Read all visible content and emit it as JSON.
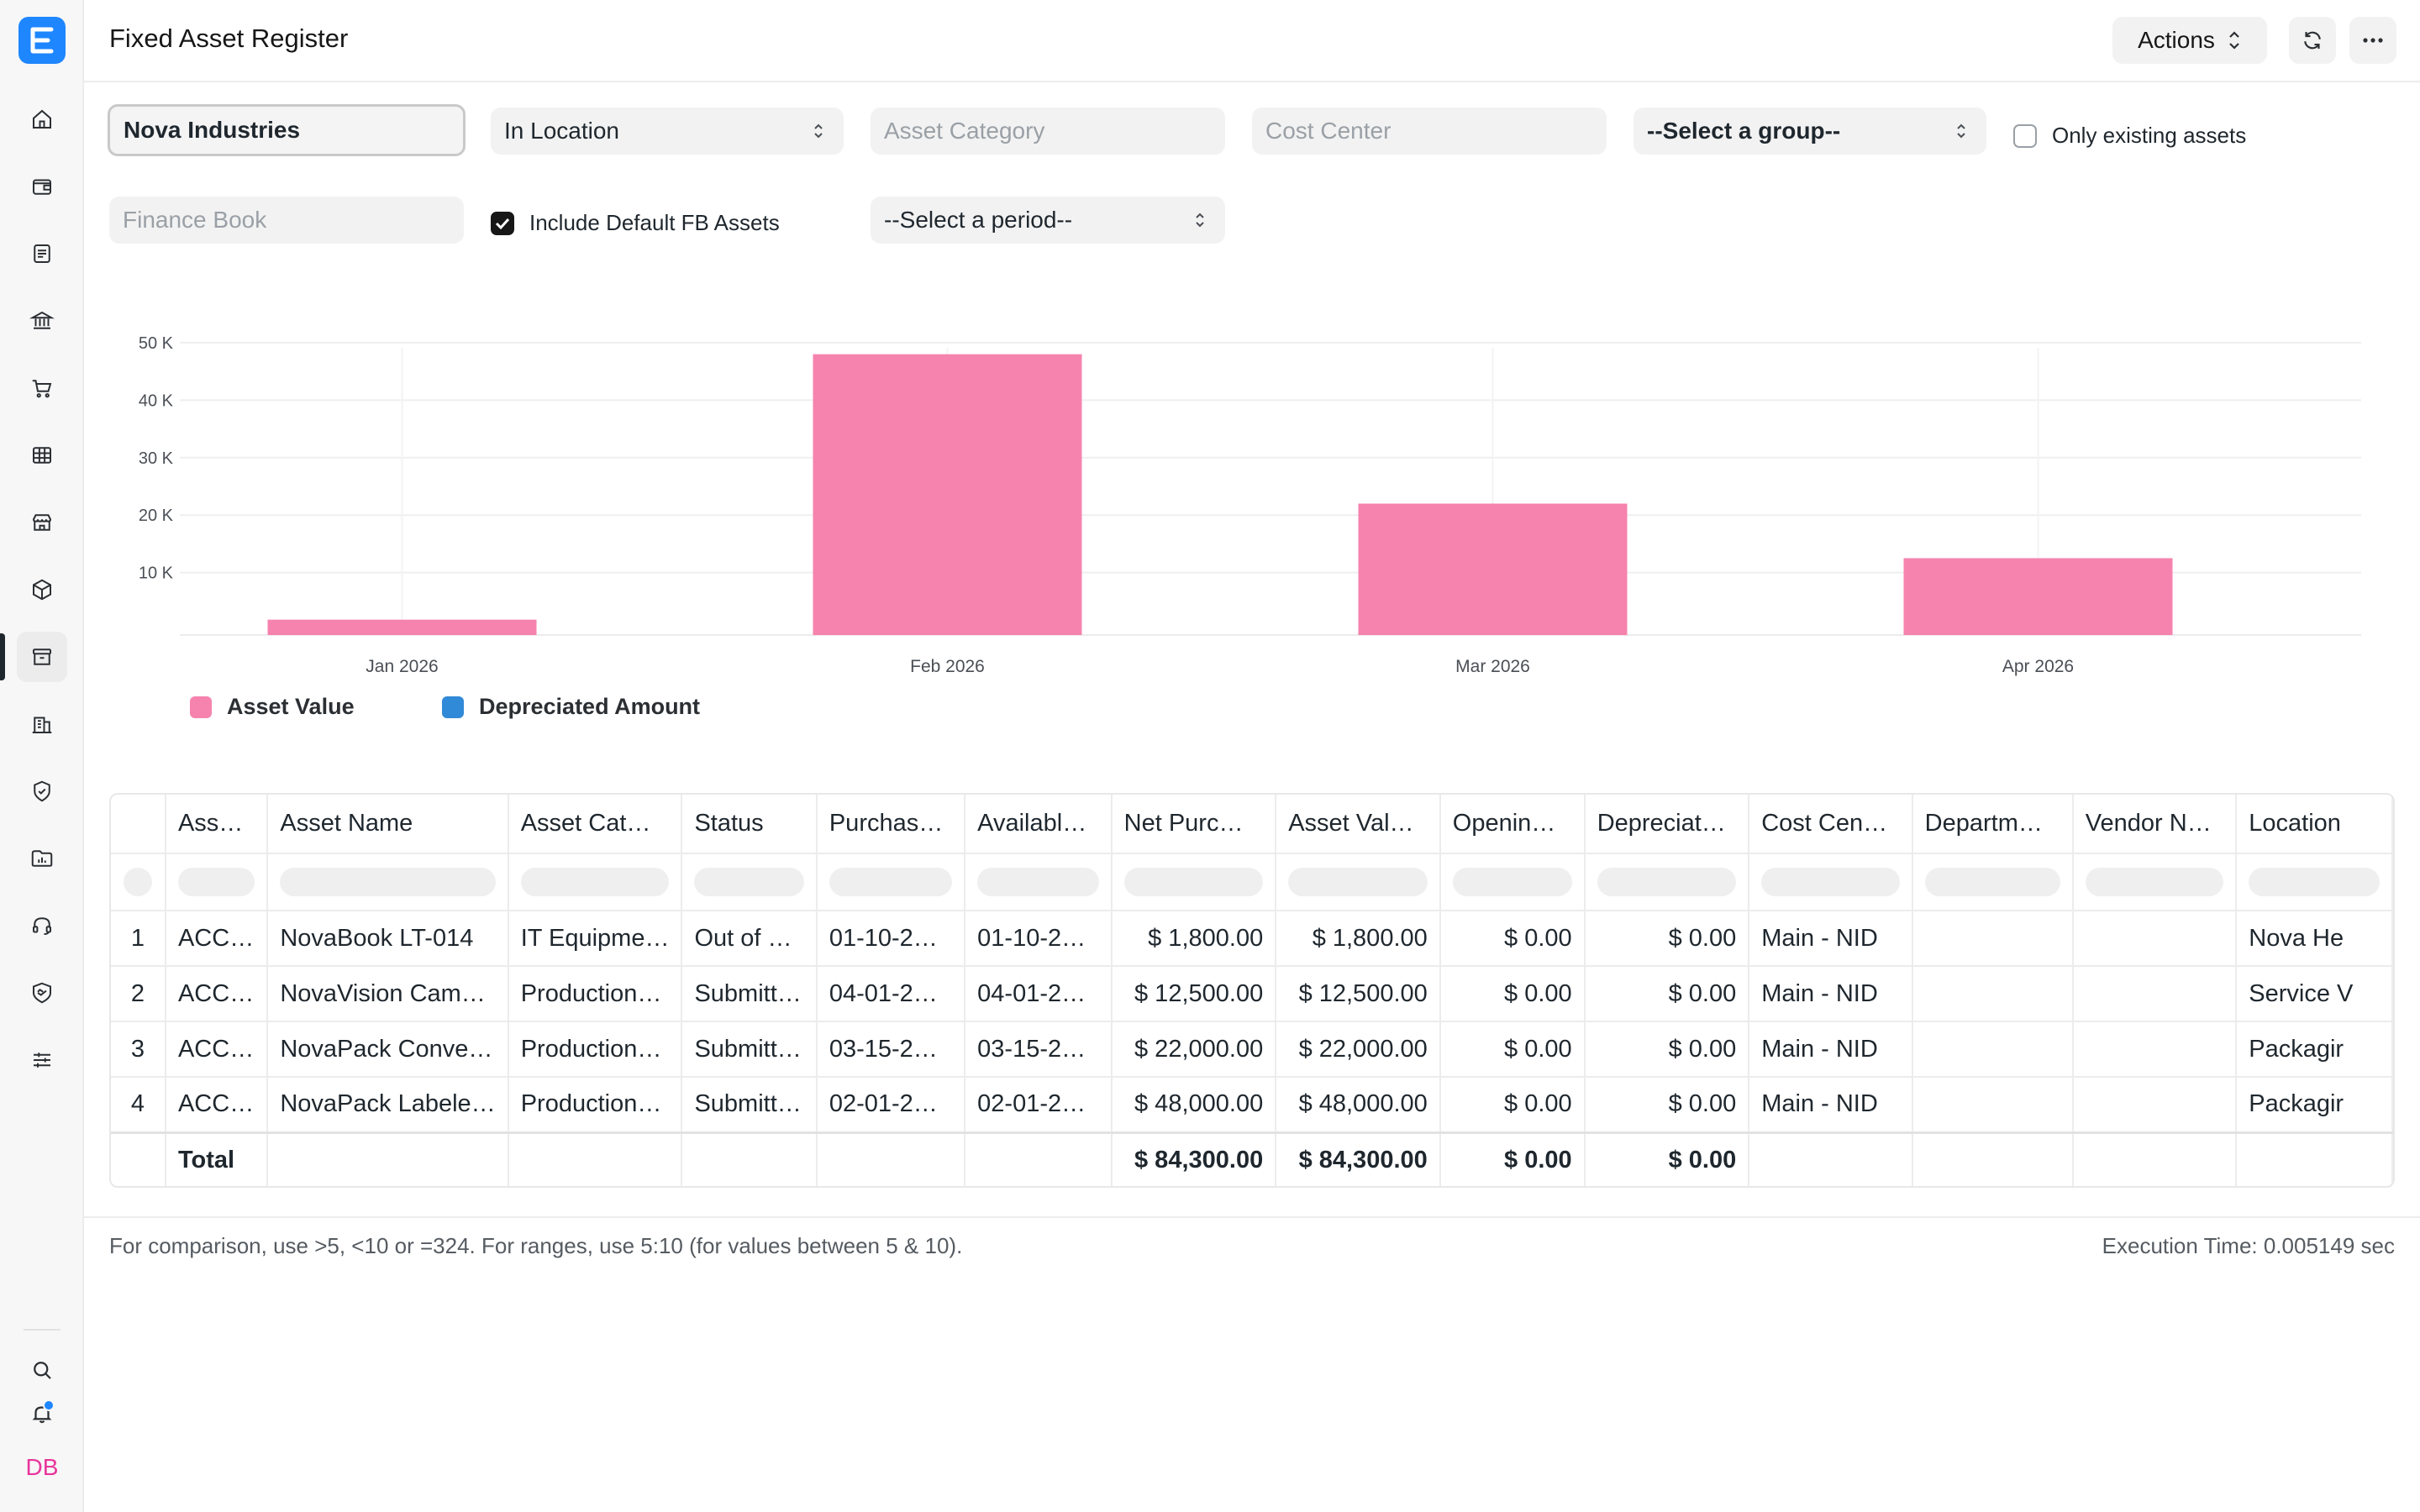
{
  "app": {
    "logo_letter": "E",
    "user_initials": "DB"
  },
  "header": {
    "title": "Fixed Asset Register",
    "actions_label": "Actions"
  },
  "filters": {
    "company": "Nova Industries",
    "status": "In Location",
    "asset_category_placeholder": "Asset Category",
    "cost_center_placeholder": "Cost Center",
    "group_by": "--Select a group--",
    "only_existing_label": "Only existing assets",
    "only_existing_checked": false,
    "finance_book_placeholder": "Finance Book",
    "include_default_fb_label": "Include Default FB Assets",
    "include_default_fb_checked": true,
    "period": "--Select a period--"
  },
  "sidebar": {
    "items": [
      {
        "icon": "home-icon"
      },
      {
        "icon": "wallet-icon"
      },
      {
        "icon": "document-icon"
      },
      {
        "icon": "bank-icon"
      },
      {
        "icon": "cart-icon"
      },
      {
        "icon": "table-icon"
      },
      {
        "icon": "store-icon"
      },
      {
        "icon": "box-icon"
      },
      {
        "icon": "archive-icon",
        "active": true
      },
      {
        "icon": "building-icon"
      },
      {
        "icon": "shield-icon"
      },
      {
        "icon": "folder-chart-icon"
      },
      {
        "icon": "headset-icon"
      },
      {
        "icon": "shield-handshake-icon"
      },
      {
        "icon": "sliders-icon"
      }
    ],
    "bottom": [
      {
        "icon": "search-icon"
      },
      {
        "icon": "bell-icon",
        "has_notification": true
      }
    ]
  },
  "chart_data": {
    "type": "bar",
    "categories": [
      "Jan 2026",
      "Feb 2026",
      "Mar 2026",
      "Apr 2026"
    ],
    "series": [
      {
        "name": "Asset Value",
        "color": "#f683ae",
        "values": [
          1800,
          48000,
          22000,
          12500
        ]
      },
      {
        "name": "Depreciated Amount",
        "color": "#318ad8",
        "values": [
          0,
          0,
          0,
          0
        ]
      }
    ],
    "y_ticks": [
      "10 K",
      "20 K",
      "30 K",
      "40 K",
      "50 K"
    ],
    "y_tick_values": [
      10000,
      20000,
      30000,
      40000,
      50000
    ],
    "ylim": [
      0,
      50000
    ],
    "legend_position": "bottom-left",
    "grid": true
  },
  "table": {
    "columns": [
      "Ass…",
      "Asset Name",
      "Asset Cat…",
      "Status",
      "Purchas…",
      "Availabl…",
      "Net Purc…",
      "Asset Val…",
      "Openin…",
      "Depreciat…",
      "Cost Cen…",
      "Departm…",
      "Vendor N…",
      "Location"
    ],
    "rows": [
      [
        "1",
        "ACC…",
        "NovaBook LT-014",
        "IT Equipme…",
        "Out of …",
        "01-10-2…",
        "01-10-2…",
        "$ 1,800.00",
        "$ 1,800.00",
        "$ 0.00",
        "$ 0.00",
        "Main - NID",
        "",
        "",
        "Nova He"
      ],
      [
        "2",
        "ACC…",
        "NovaVision Cam…",
        "Production…",
        "Submitt…",
        "04-01-2…",
        "04-01-2…",
        "$ 12,500.00",
        "$ 12,500.00",
        "$ 0.00",
        "$ 0.00",
        "Main - NID",
        "",
        "",
        "Service V"
      ],
      [
        "3",
        "ACC…",
        "NovaPack Conve…",
        "Production…",
        "Submitt…",
        "03-15-2…",
        "03-15-2…",
        "$ 22,000.00",
        "$ 22,000.00",
        "$ 0.00",
        "$ 0.00",
        "Main - NID",
        "",
        "",
        "Packagir"
      ],
      [
        "4",
        "ACC…",
        "NovaPack Labele…",
        "Production…",
        "Submitt…",
        "02-01-2…",
        "02-01-2…",
        "$ 48,000.00",
        "$ 48,000.00",
        "$ 0.00",
        "$ 0.00",
        "Main - NID",
        "",
        "",
        "Packagir"
      ]
    ],
    "total": [
      "",
      "Total",
      "",
      "",
      "",
      "",
      "",
      "$ 84,300.00",
      "$ 84,300.00",
      "$ 0.00",
      "$ 0.00",
      "",
      "",
      "",
      ""
    ]
  },
  "footer": {
    "note": "For comparison, use >5, <10 or =324. For ranges, use 5:10 (for values between 5 & 10).",
    "execution_time": "Execution Time: 0.005149 sec"
  }
}
